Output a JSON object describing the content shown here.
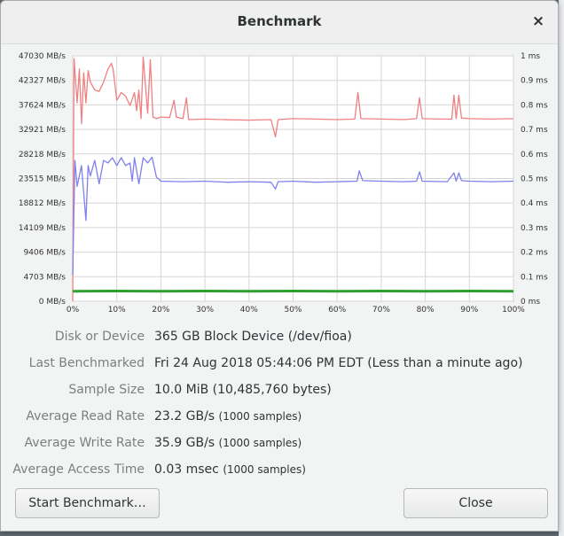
{
  "window": {
    "title": "Benchmark",
    "close_glyph": "×"
  },
  "chart_data": {
    "type": "line",
    "y_left_ticks": [
      "47030 MB/s",
      "42327 MB/s",
      "37624 MB/s",
      "32921 MB/s",
      "28218 MB/s",
      "23515 MB/s",
      "18812 MB/s",
      "14109 MB/s",
      "9406 MB/s",
      "4703 MB/s",
      "0 MB/s"
    ],
    "y_right_ticks": [
      "1 ms",
      "0.9 ms",
      "0.8 ms",
      "0.7 ms",
      "0.6 ms",
      "0.5 ms",
      "0.4 ms",
      "0.3 ms",
      "0.2 ms",
      "0.1 ms",
      "0 ms"
    ],
    "x_ticks": [
      "0%",
      "10%",
      "20%",
      "30%",
      "40%",
      "50%",
      "60%",
      "70%",
      "80%",
      "90%",
      "100%"
    ],
    "left_ylim": [
      0,
      47030
    ],
    "right_ylim": [
      0,
      1
    ],
    "xlim": [
      0,
      100
    ],
    "grid": true,
    "series": [
      {
        "color": "#f08080",
        "points": [
          [
            0,
            0
          ],
          [
            0.3,
            46500
          ],
          [
            1,
            38000
          ],
          [
            1.5,
            44500
          ],
          [
            2,
            34000
          ],
          [
            2.5,
            43800
          ],
          [
            3,
            38000
          ],
          [
            3.5,
            44200
          ],
          [
            4,
            42000
          ],
          [
            5,
            40500
          ],
          [
            6,
            40200
          ],
          [
            7,
            42000
          ],
          [
            8,
            44500
          ],
          [
            8.8,
            45600
          ],
          [
            9.2,
            44300
          ],
          [
            10,
            38500
          ],
          [
            11,
            40000
          ],
          [
            12,
            39300
          ],
          [
            13,
            37500
          ],
          [
            14,
            40000
          ],
          [
            14.5,
            36500
          ],
          [
            15,
            40500
          ],
          [
            15.5,
            35000
          ],
          [
            16,
            46800
          ],
          [
            17,
            36000
          ],
          [
            17.6,
            46300
          ],
          [
            18.2,
            35300
          ],
          [
            19,
            35000
          ],
          [
            20,
            35300
          ],
          [
            22,
            35200
          ],
          [
            23,
            38500
          ],
          [
            23.5,
            35300
          ],
          [
            25,
            35000
          ],
          [
            25.8,
            39000
          ],
          [
            26.3,
            34800
          ],
          [
            30,
            34900
          ],
          [
            34,
            34800
          ],
          [
            40,
            34700
          ],
          [
            45,
            34800
          ],
          [
            46,
            31500
          ],
          [
            46.6,
            34800
          ],
          [
            50,
            35000
          ],
          [
            55,
            34900
          ],
          [
            60,
            34800
          ],
          [
            64,
            34900
          ],
          [
            64.7,
            40000
          ],
          [
            65.4,
            35000
          ],
          [
            70,
            34900
          ],
          [
            75,
            34800
          ],
          [
            78,
            35000
          ],
          [
            78.7,
            39000
          ],
          [
            79.3,
            35000
          ],
          [
            83,
            34900
          ],
          [
            86,
            34900
          ],
          [
            86.5,
            39500
          ],
          [
            87,
            35000
          ],
          [
            87.6,
            39500
          ],
          [
            88.2,
            35100
          ],
          [
            90,
            35000
          ],
          [
            95,
            34900
          ],
          [
            100,
            35000
          ]
        ]
      },
      {
        "color": "#8080ee",
        "points": [
          [
            0,
            5000
          ],
          [
            0.5,
            27000
          ],
          [
            1,
            22000
          ],
          [
            2,
            26000
          ],
          [
            3,
            15500
          ],
          [
            3.5,
            26000
          ],
          [
            4,
            24000
          ],
          [
            5,
            27000
          ],
          [
            6,
            22500
          ],
          [
            7,
            27000
          ],
          [
            8,
            26500
          ],
          [
            9,
            27500
          ],
          [
            10,
            26000
          ],
          [
            11,
            27500
          ],
          [
            12,
            26000
          ],
          [
            13,
            26500
          ],
          [
            13.5,
            23000
          ],
          [
            14,
            27500
          ],
          [
            15,
            22500
          ],
          [
            16,
            27500
          ],
          [
            17,
            26500
          ],
          [
            18,
            27600
          ],
          [
            19,
            23800
          ],
          [
            20,
            23000
          ],
          [
            25,
            22900
          ],
          [
            30,
            23000
          ],
          [
            35,
            22800
          ],
          [
            40,
            22900
          ],
          [
            45,
            22800
          ],
          [
            46,
            21500
          ],
          [
            46.6,
            22900
          ],
          [
            50,
            23000
          ],
          [
            55,
            22800
          ],
          [
            60,
            22900
          ],
          [
            64.5,
            23000
          ],
          [
            65,
            25000
          ],
          [
            65.8,
            23100
          ],
          [
            70,
            23000
          ],
          [
            75,
            22900
          ],
          [
            78,
            23000
          ],
          [
            78.7,
            24800
          ],
          [
            79.3,
            23000
          ],
          [
            85,
            22900
          ],
          [
            86.5,
            24600
          ],
          [
            87,
            23000
          ],
          [
            87.6,
            24600
          ],
          [
            88.2,
            23100
          ],
          [
            90,
            23000
          ],
          [
            95,
            22900
          ],
          [
            100,
            23000
          ]
        ]
      },
      {
        "color": "#2ea02e",
        "points": [
          [
            0,
            1900
          ],
          [
            10,
            1950
          ],
          [
            20,
            1900
          ],
          [
            30,
            1950
          ],
          [
            40,
            1900
          ],
          [
            50,
            1950
          ],
          [
            60,
            1900
          ],
          [
            70,
            1950
          ],
          [
            80,
            1900
          ],
          [
            90,
            1950
          ],
          [
            100,
            1900
          ]
        ]
      }
    ]
  },
  "info": {
    "device_label": "Disk or Device",
    "device_value": "365 GB Block Device (/dev/fioa)",
    "last_label": "Last Benchmarked",
    "last_value": "Fri 24 Aug 2018 05:44:06 PM EDT (Less than a minute ago)",
    "sample_label": "Sample Size",
    "sample_value": "10.0 MiB (10,485,760 bytes)",
    "read_label": "Average Read Rate",
    "read_value": "23.2 GB/s",
    "read_samples": "(1000 samples)",
    "write_label": "Average Write Rate",
    "write_value": "35.9 GB/s",
    "write_samples": "(1000 samples)",
    "access_label": "Average Access Time",
    "access_value": "0.03 msec",
    "access_samples": "(1000 samples)"
  },
  "buttons": {
    "start": "Start Benchmark…",
    "close": "Close"
  }
}
